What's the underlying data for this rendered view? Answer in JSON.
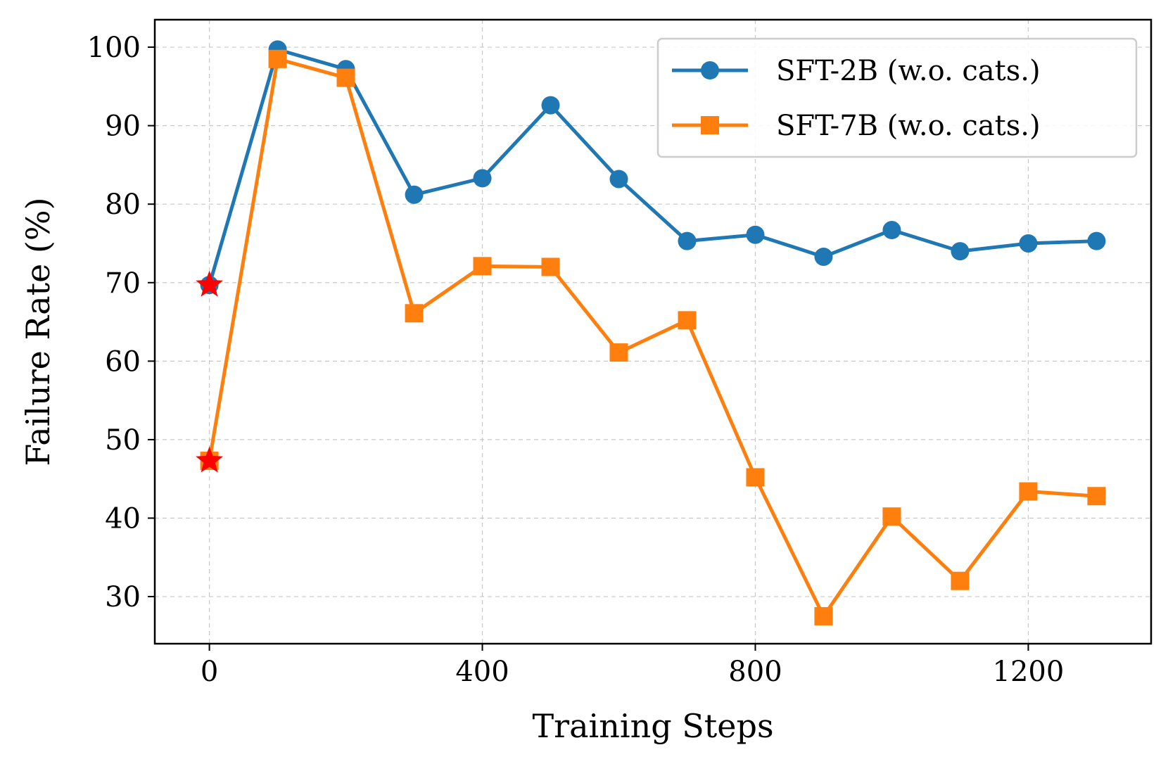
{
  "chart_data": {
    "type": "line",
    "xlabel": "Training Steps",
    "ylabel": "Failure Rate (%)",
    "xlim": [
      -80,
      1380
    ],
    "ylim": [
      24,
      103.5
    ],
    "xticks": [
      0,
      400,
      800,
      1200
    ],
    "yticks": [
      30,
      40,
      50,
      60,
      70,
      80,
      90,
      100
    ],
    "grid": true,
    "legend_position": "top-right",
    "series": [
      {
        "name": "SFT-2B (w.o. cats.)",
        "color": "#1f77b4",
        "marker": "circle",
        "x": [
          0,
          100,
          200,
          300,
          400,
          500,
          600,
          700,
          800,
          900,
          1000,
          1100,
          1200,
          1300
        ],
        "values": [
          69.7,
          99.7,
          97.2,
          81.2,
          83.3,
          92.6,
          83.2,
          75.3,
          76.1,
          73.3,
          76.7,
          74.0,
          75.0,
          75.3
        ]
      },
      {
        "name": "SFT-7B (w.o. cats.)",
        "color": "#ff7f0e",
        "marker": "square",
        "x": [
          0,
          100,
          200,
          300,
          400,
          500,
          600,
          700,
          800,
          900,
          1000,
          1100,
          1200,
          1300
        ],
        "values": [
          47.3,
          98.5,
          96.1,
          66.1,
          72.1,
          72.0,
          61.1,
          65.2,
          45.2,
          27.5,
          40.2,
          32.0,
          43.4,
          42.8
        ]
      }
    ],
    "highlights": [
      {
        "x": 0,
        "value": 69.7,
        "marker": "star",
        "color": "#ff0000"
      },
      {
        "x": 0,
        "value": 47.3,
        "marker": "star",
        "color": "#ff0000"
      }
    ]
  }
}
